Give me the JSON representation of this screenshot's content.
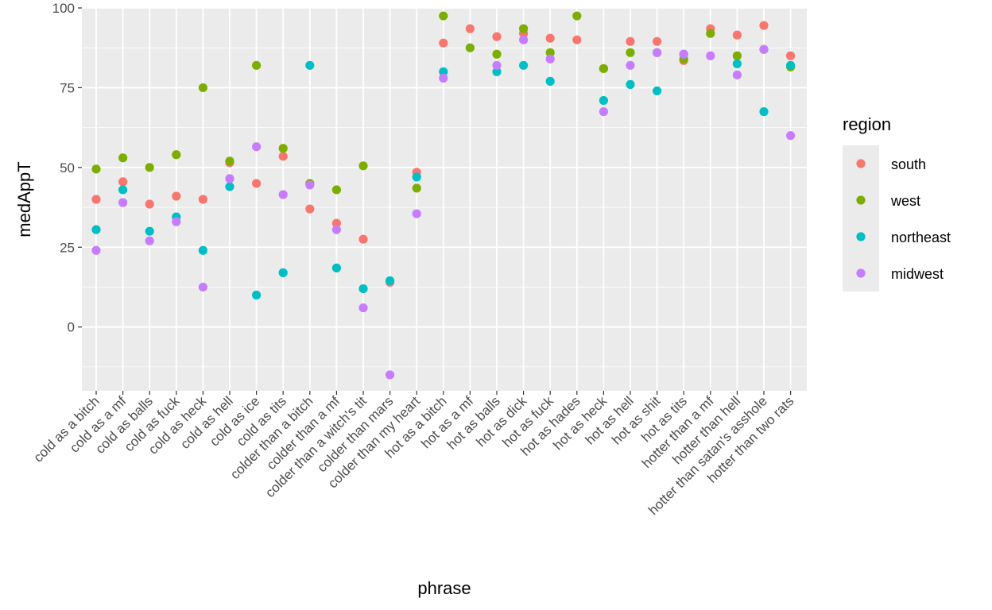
{
  "chart_data": {
    "type": "scatter",
    "xlabel": "phrase",
    "ylabel": "medAppT",
    "ylim": [
      -20,
      100
    ],
    "yticks": [
      0,
      25,
      50,
      75,
      100
    ],
    "grid": true,
    "legend_title": "region",
    "legend_position": "right",
    "categories": [
      "cold as a bitch",
      "cold as a mf",
      "cold as balls",
      "cold as fuck",
      "cold as heck",
      "cold as hell",
      "cold as ice",
      "cold as tits",
      "colder than a bitch",
      "colder than a mf",
      "colder than a witch's tit",
      "colder than mars",
      "colder than my heart",
      "hot as a bitch",
      "hot as a mf",
      "hot as balls",
      "hot as dick",
      "hot as fuck",
      "hot as hades",
      "hot as heck",
      "hot as hell",
      "hot as shit",
      "hot as tits",
      "hotter than a mf",
      "hotter than hell",
      "hotter than satan's asshole",
      "hotter than two rats"
    ],
    "series": [
      {
        "name": "south",
        "color": "#F8766D",
        "values": [
          40,
          45.5,
          38.5,
          41,
          40,
          51.5,
          45,
          53.5,
          37,
          32.5,
          27.5,
          14,
          48.5,
          89,
          93.5,
          91,
          92,
          90.5,
          90,
          81,
          89.5,
          89.5,
          83.5,
          93.5,
          91.5,
          94.5,
          85
        ]
      },
      {
        "name": "west",
        "color": "#7CAE00",
        "values": [
          49.5,
          53,
          50,
          54,
          75,
          52,
          82,
          56,
          45,
          43,
          50.5,
          null,
          43.5,
          97.5,
          87.5,
          85.5,
          93.5,
          86,
          97.5,
          81,
          86,
          86,
          84,
          92,
          85,
          87,
          81.5
        ]
      },
      {
        "name": "northeast",
        "color": "#00BFC4",
        "values": [
          30.5,
          43,
          30,
          34.5,
          24,
          44,
          10,
          17,
          82,
          18.5,
          12,
          14.5,
          47,
          80,
          null,
          80,
          82,
          77,
          null,
          71,
          76,
          74,
          85.5,
          null,
          82.5,
          67.5,
          82
        ]
      },
      {
        "name": "midwest",
        "color": "#C77CFF",
        "values": [
          24,
          39,
          27,
          33,
          12.5,
          46.5,
          56.5,
          41.5,
          44.5,
          30.5,
          6,
          -15,
          35.5,
          78,
          null,
          82,
          90,
          84,
          null,
          67.5,
          82,
          86,
          85.5,
          85,
          79,
          87,
          60
        ]
      }
    ]
  }
}
